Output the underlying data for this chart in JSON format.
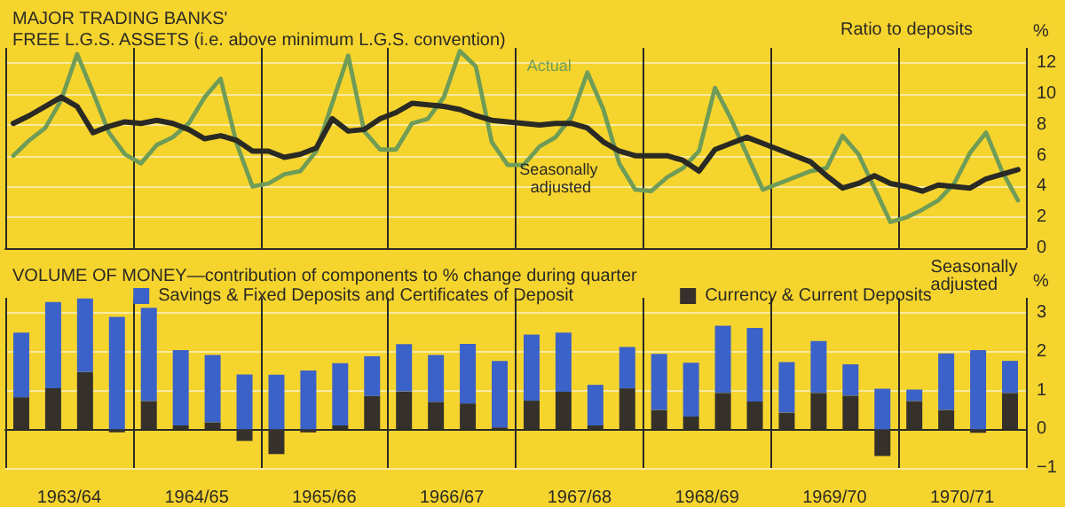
{
  "chart_data": [
    {
      "type": "line",
      "title": "MAJOR TRADING BANKS'",
      "subtitle": "FREE L.G.S. ASSETS (i.e. above minimum L.G.S. convention)",
      "ylabel": "%",
      "annotations": [
        "Ratio to deposits"
      ],
      "categories": [
        null,
        null,
        null,
        null,
        null,
        null,
        null,
        null,
        null,
        null,
        null,
        null,
        null,
        null,
        null,
        null,
        null,
        null,
        null,
        null,
        null,
        null,
        null,
        null,
        null,
        null,
        null,
        null,
        null,
        null,
        null,
        null,
        null,
        null,
        null,
        null,
        null,
        null,
        null,
        null,
        null,
        null,
        null,
        null,
        null,
        null,
        null,
        null,
        null,
        null,
        null,
        null,
        null,
        null,
        null,
        null,
        null,
        null,
        null,
        null,
        null,
        null,
        null,
        null
      ],
      "series": [
        {
          "name": "Actual",
          "color": "#6f9c57",
          "values": [
            6.0,
            7.0,
            7.8,
            9.6,
            12.6,
            10.1,
            7.5,
            6.1,
            5.5,
            6.7,
            7.2,
            8.1,
            9.8,
            11.0,
            6.8,
            4.0,
            4.2,
            4.8,
            5.0,
            6.3,
            9.4,
            12.5,
            7.6,
            6.4,
            6.4,
            8.1,
            8.4,
            9.8,
            12.8,
            11.8,
            6.9,
            5.4,
            5.4,
            6.6,
            7.2,
            8.5,
            11.4,
            9.0,
            5.5,
            3.8,
            3.7,
            4.6,
            5.2,
            6.3,
            10.4,
            8.4,
            6.1,
            3.8,
            4.2,
            4.6,
            5.0,
            5.2,
            7.3,
            6.1,
            3.9,
            1.7,
            2.0,
            2.5,
            3.1,
            4.2,
            6.2,
            7.5,
            5.0,
            3.1
          ]
        },
        {
          "name": "Seasonally adjusted",
          "color": "#2a2a24",
          "values": [
            8.1,
            8.6,
            9.2,
            9.8,
            9.2,
            7.5,
            7.9,
            8.2,
            8.1,
            8.3,
            8.1,
            7.7,
            7.1,
            7.3,
            7.0,
            6.3,
            6.3,
            5.9,
            6.1,
            6.5,
            8.4,
            7.6,
            7.7,
            8.4,
            8.8,
            9.4,
            9.3,
            9.2,
            9.0,
            8.6,
            8.3,
            8.2,
            8.1,
            8.0,
            8.1,
            8.1,
            7.8,
            6.9,
            6.3,
            6.0,
            6.0,
            6.0,
            5.7,
            5.0,
            6.4,
            6.8,
            7.2,
            6.8,
            6.4,
            6.0,
            5.6,
            4.7,
            3.9,
            4.2,
            4.7,
            4.2,
            4.0,
            3.7,
            4.1,
            4.0,
            3.9,
            4.5,
            4.8,
            5.1
          ]
        }
      ],
      "ylim": [
        0,
        13
      ],
      "yticks": [
        0,
        2,
        4,
        6,
        8,
        10,
        12
      ],
      "tick_labels": "y",
      "grid": true,
      "legend": false,
      "marker": "none",
      "line_style": "solid"
    },
    {
      "type": "bar",
      "title": "VOLUME OF MONEY—contribution of components to % change during quarter",
      "ylabel": "%",
      "annotations": [
        "Seasonally adjusted"
      ],
      "stacked": true,
      "categories": [
        null,
        "1963/64",
        null,
        null,
        null,
        "1964/65",
        null,
        null,
        null,
        "1965/66",
        null,
        null,
        null,
        "1966/67",
        null,
        null,
        null,
        "1967/68",
        null,
        null,
        null,
        "1968/69",
        null,
        null,
        null,
        "1969/70",
        null,
        null,
        null,
        "1970/71",
        null,
        null
      ],
      "series": [
        {
          "name": "Currency & Current Deposits",
          "color": "#35312a",
          "values": [
            0.83,
            1.06,
            1.48,
            -0.08,
            0.73,
            0.1,
            0.18,
            -0.3,
            -0.64,
            -0.08,
            0.1,
            0.86,
            0.98,
            0.71,
            0.67,
            0.05,
            0.74,
            0.97,
            0.1,
            1.06,
            0.5,
            0.33,
            0.94,
            0.72,
            0.43,
            0.94,
            0.87,
            -0.69,
            0.73,
            0.5,
            -0.09,
            0.94
          ]
        },
        {
          "name": "Savings & Fixed Deposits and Certificates of Deposit",
          "color": "#3b62c8",
          "values": [
            1.67,
            2.23,
            1.9,
            2.91,
            2.41,
            1.95,
            1.74,
            1.42,
            1.41,
            1.52,
            1.61,
            1.03,
            1.22,
            1.21,
            1.54,
            1.72,
            1.71,
            1.53,
            1.05,
            1.07,
            1.45,
            1.39,
            1.74,
            1.9,
            1.31,
            1.34,
            0.81,
            1.05,
            0.3,
            1.46,
            2.05,
            0.83
          ]
        }
      ],
      "ylim": [
        -1,
        3.4
      ],
      "yticks": [
        {
          "value": -1,
          "label": "−1"
        },
        0,
        1,
        2,
        3
      ],
      "grid": true,
      "legend": "top"
    }
  ]
}
